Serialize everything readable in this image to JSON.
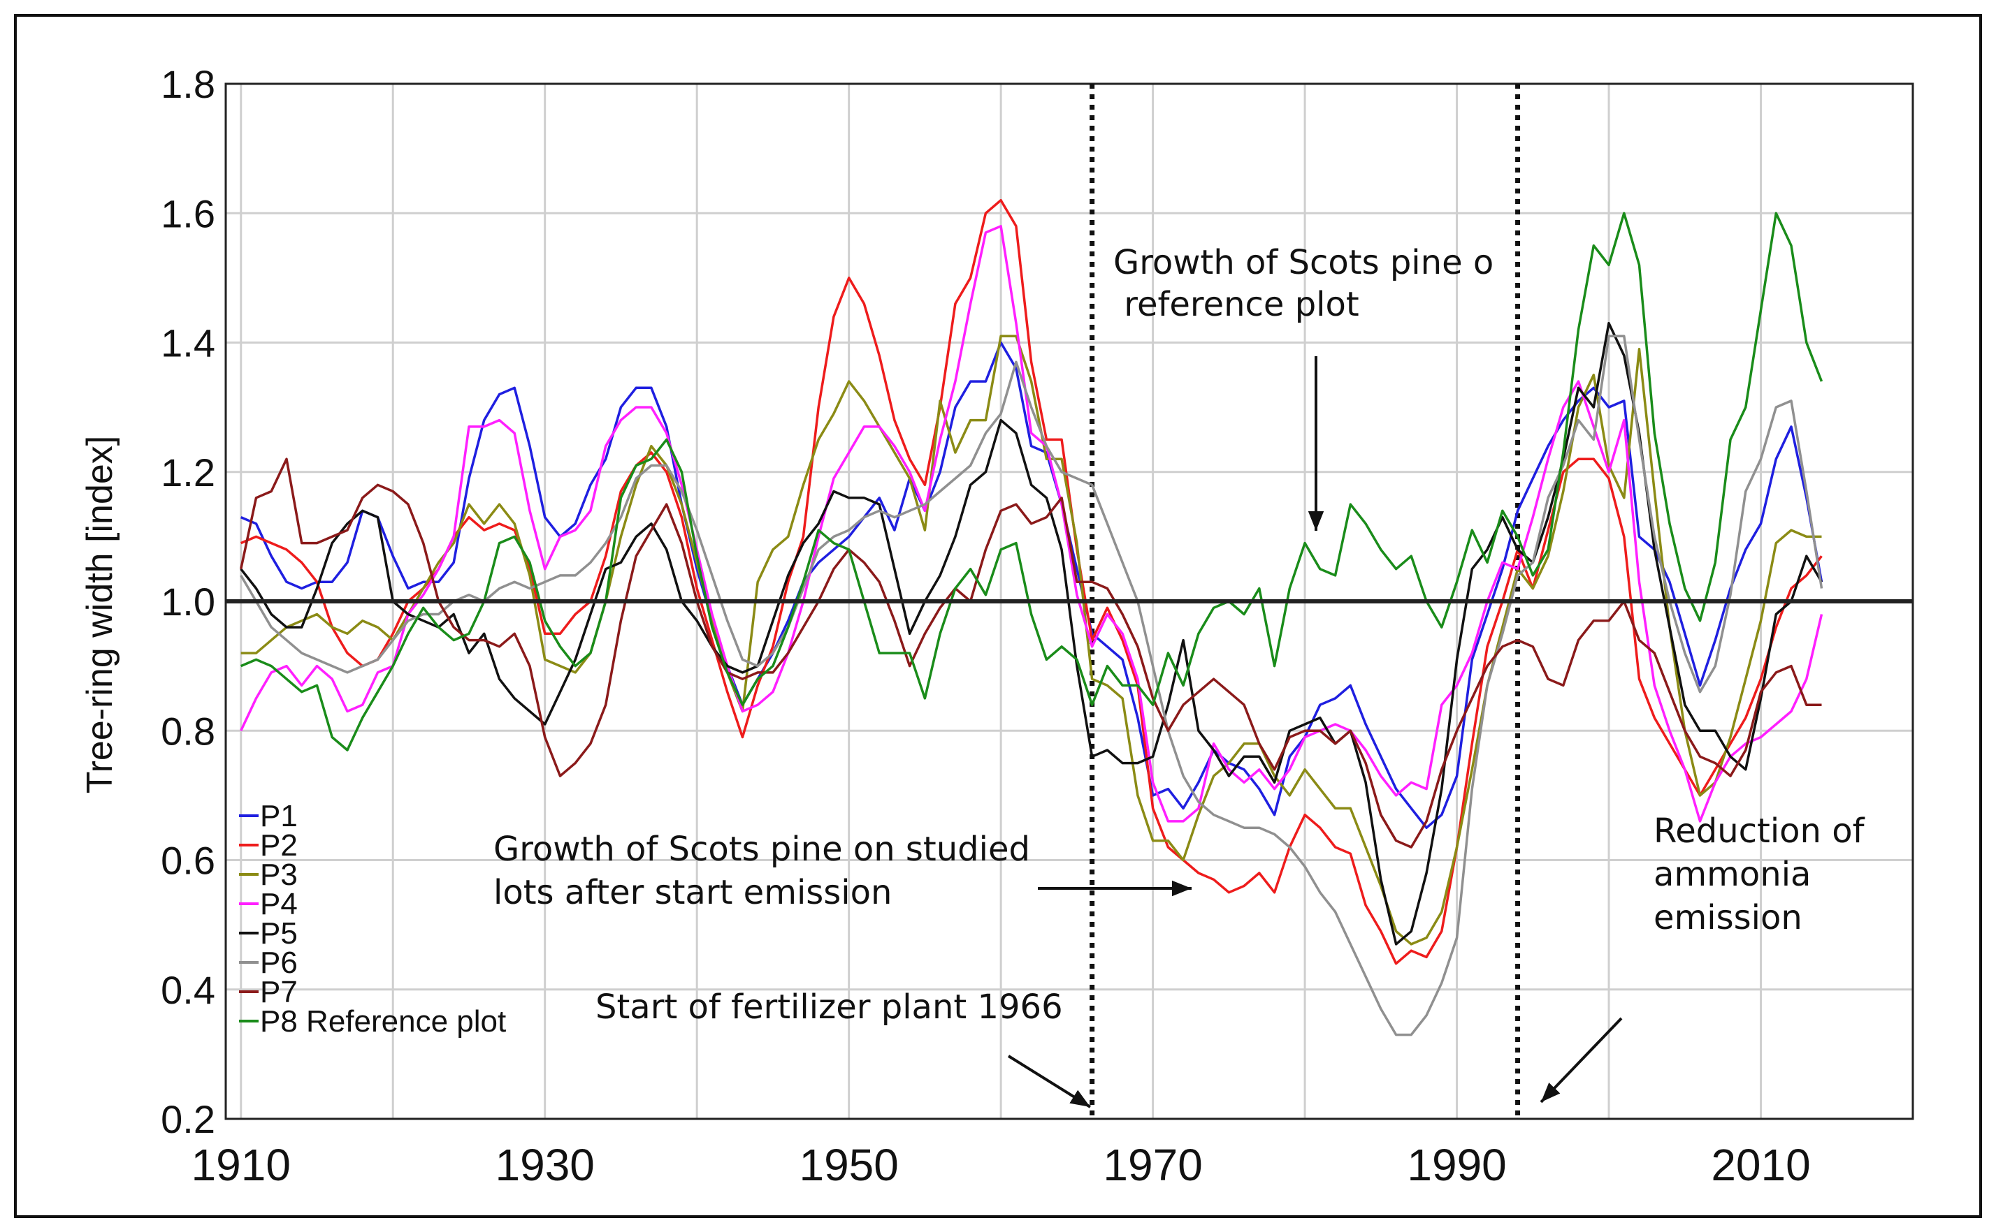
{
  "chart_data": {
    "type": "line",
    "title": "",
    "xlabel": "",
    "ylabel": "Tree-ring width [index]",
    "xlim": [
      1909,
      2020
    ],
    "ylim": [
      0.2,
      1.8
    ],
    "xticks": [
      1910,
      1930,
      1950,
      1970,
      1990,
      2010
    ],
    "yticks": [
      0.2,
      0.4,
      0.6,
      0.8,
      1.0,
      1.2,
      1.4,
      1.6,
      1.8
    ],
    "xtick_labels": [
      "1910",
      "1930",
      "1950",
      "1970",
      "1990",
      "2010"
    ],
    "ytick_labels": [
      "0.2",
      "0.4",
      "0.6",
      "0.8",
      "1.0",
      "1.2",
      "1.4",
      "1.6",
      "1.8"
    ],
    "grid": true,
    "legend_position": "bottom-left",
    "reference_line": 1.0,
    "vertical_markers": [
      1966,
      1994
    ],
    "annotations": [
      "Growth of Scots pine on reference plot",
      "Growth of Scots pine on studied plots after start emission",
      "Start of fertilizer plant 1966",
      "Reduction of ammonia emission"
    ],
    "x": [
      1910,
      1911,
      1912,
      1913,
      1914,
      1915,
      1916,
      1917,
      1918,
      1919,
      1920,
      1921,
      1922,
      1923,
      1924,
      1925,
      1926,
      1927,
      1928,
      1929,
      1930,
      1931,
      1932,
      1933,
      1934,
      1935,
      1936,
      1937,
      1938,
      1939,
      1940,
      1941,
      1942,
      1943,
      1944,
      1945,
      1946,
      1947,
      1948,
      1949,
      1950,
      1951,
      1952,
      1953,
      1954,
      1955,
      1956,
      1957,
      1958,
      1959,
      1960,
      1961,
      1962,
      1963,
      1964,
      1965,
      1966,
      1967,
      1968,
      1969,
      1970,
      1971,
      1972,
      1973,
      1974,
      1975,
      1976,
      1977,
      1978,
      1979,
      1980,
      1981,
      1982,
      1983,
      1984,
      1985,
      1986,
      1987,
      1988,
      1989,
      1990,
      1991,
      1992,
      1993,
      1994,
      1995,
      1996,
      1997,
      1998,
      1999,
      2000,
      2001,
      2002,
      2003,
      2004,
      2005,
      2006,
      2007,
      2008,
      2009,
      2010,
      2011,
      2012,
      2013,
      2014
    ],
    "series": [
      {
        "name": "P1",
        "color": "#1f1fe0",
        "values": [
          1.13,
          1.12,
          1.07,
          1.03,
          1.02,
          1.03,
          1.03,
          1.06,
          1.14,
          1.13,
          1.07,
          1.02,
          1.03,
          1.03,
          1.06,
          1.19,
          1.28,
          1.32,
          1.33,
          1.24,
          1.13,
          1.1,
          1.12,
          1.18,
          1.22,
          1.3,
          1.33,
          1.33,
          1.27,
          1.15,
          1.05,
          0.97,
          0.9,
          0.84,
          0.88,
          0.92,
          0.97,
          1.03,
          1.06,
          1.08,
          1.1,
          1.13,
          1.16,
          1.11,
          1.19,
          1.14,
          1.2,
          1.3,
          1.34,
          1.34,
          1.4,
          1.36,
          1.24,
          1.23,
          1.15,
          1.05,
          0.95,
          0.93,
          0.91,
          0.82,
          0.7,
          0.71,
          0.68,
          0.72,
          0.77,
          0.75,
          0.74,
          0.71,
          0.67,
          0.76,
          0.79,
          0.84,
          0.85,
          0.87,
          0.81,
          0.76,
          0.71,
          0.68,
          0.65,
          0.67,
          0.73,
          0.91,
          0.98,
          1.05,
          1.14,
          1.19,
          1.24,
          1.28,
          1.31,
          1.33,
          1.3,
          1.31,
          1.1,
          1.08,
          1.03,
          0.95,
          0.87,
          0.94,
          1.02,
          1.08,
          1.12,
          1.22,
          1.27,
          1.16,
          1.03
        ]
      },
      {
        "name": "P2",
        "color": "#ee1c1c",
        "values": [
          1.09,
          1.1,
          1.09,
          1.08,
          1.06,
          1.03,
          0.96,
          0.92,
          0.9,
          0.91,
          0.95,
          1.0,
          1.02,
          1.05,
          1.1,
          1.13,
          1.11,
          1.12,
          1.11,
          1.05,
          0.95,
          0.95,
          0.98,
          1.0,
          1.07,
          1.17,
          1.21,
          1.23,
          1.2,
          1.13,
          1.02,
          0.94,
          0.86,
          0.79,
          0.87,
          0.93,
          1.03,
          1.1,
          1.3,
          1.44,
          1.5,
          1.46,
          1.38,
          1.28,
          1.22,
          1.18,
          1.3,
          1.46,
          1.5,
          1.6,
          1.62,
          1.58,
          1.37,
          1.25,
          1.25,
          1.08,
          0.94,
          0.99,
          0.94,
          0.87,
          0.68,
          0.62,
          0.6,
          0.58,
          0.57,
          0.55,
          0.56,
          0.58,
          0.55,
          0.62,
          0.67,
          0.65,
          0.62,
          0.61,
          0.53,
          0.49,
          0.44,
          0.46,
          0.45,
          0.49,
          0.62,
          0.78,
          0.93,
          1.0,
          1.08,
          1.02,
          1.11,
          1.2,
          1.22,
          1.22,
          1.19,
          1.1,
          0.88,
          0.82,
          0.78,
          0.74,
          0.7,
          0.74,
          0.78,
          0.82,
          0.88,
          0.96,
          1.02,
          1.04,
          1.07
        ]
      },
      {
        "name": "P3",
        "color": "#8b8b15",
        "values": [
          0.92,
          0.92,
          0.94,
          0.96,
          0.97,
          0.98,
          0.96,
          0.95,
          0.97,
          0.96,
          0.94,
          0.98,
          1.02,
          1.06,
          1.09,
          1.15,
          1.12,
          1.15,
          1.12,
          1.04,
          0.91,
          0.9,
          0.89,
          0.92,
          1.0,
          1.1,
          1.18,
          1.24,
          1.21,
          1.15,
          1.06,
          0.97,
          0.89,
          0.83,
          1.03,
          1.08,
          1.1,
          1.18,
          1.25,
          1.29,
          1.34,
          1.31,
          1.27,
          1.23,
          1.19,
          1.11,
          1.31,
          1.23,
          1.28,
          1.28,
          1.41,
          1.41,
          1.34,
          1.22,
          1.22,
          1.09,
          0.88,
          0.87,
          0.85,
          0.7,
          0.63,
          0.63,
          0.6,
          0.67,
          0.73,
          0.75,
          0.78,
          0.78,
          0.73,
          0.7,
          0.74,
          0.71,
          0.68,
          0.68,
          0.62,
          0.56,
          0.49,
          0.47,
          0.48,
          0.52,
          0.62,
          0.74,
          0.87,
          0.96,
          1.05,
          1.02,
          1.07,
          1.17,
          1.3,
          1.35,
          1.21,
          1.16,
          1.39,
          1.17,
          0.96,
          0.8,
          0.7,
          0.72,
          0.79,
          0.88,
          0.97,
          1.09,
          1.11,
          1.1,
          1.1
        ]
      },
      {
        "name": "P4",
        "color": "#ff20ff",
        "values": [
          0.8,
          0.85,
          0.89,
          0.9,
          0.87,
          0.9,
          0.88,
          0.83,
          0.84,
          0.89,
          0.9,
          0.98,
          1.01,
          1.05,
          1.1,
          1.27,
          1.27,
          1.28,
          1.26,
          1.14,
          1.05,
          1.1,
          1.11,
          1.14,
          1.24,
          1.28,
          1.3,
          1.3,
          1.26,
          1.18,
          1.08,
          0.98,
          0.9,
          0.83,
          0.84,
          0.86,
          0.92,
          1.0,
          1.1,
          1.19,
          1.23,
          1.27,
          1.27,
          1.24,
          1.2,
          1.14,
          1.25,
          1.34,
          1.46,
          1.57,
          1.58,
          1.43,
          1.26,
          1.24,
          1.15,
          1.01,
          0.93,
          0.98,
          0.95,
          0.88,
          0.72,
          0.66,
          0.66,
          0.68,
          0.78,
          0.74,
          0.72,
          0.74,
          0.71,
          0.74,
          0.79,
          0.8,
          0.81,
          0.8,
          0.77,
          0.73,
          0.7,
          0.72,
          0.71,
          0.84,
          0.87,
          0.92,
          1.0,
          1.06,
          1.05,
          1.13,
          1.22,
          1.3,
          1.34,
          1.27,
          1.2,
          1.28,
          1.03,
          0.87,
          0.8,
          0.74,
          0.66,
          0.72,
          0.76,
          0.78,
          0.79,
          0.81,
          0.83,
          0.88,
          0.98
        ]
      },
      {
        "name": "P5",
        "color": "#111111",
        "values": [
          1.05,
          1.02,
          0.98,
          0.96,
          0.96,
          1.02,
          1.09,
          1.12,
          1.14,
          1.13,
          1.0,
          0.98,
          0.97,
          0.96,
          0.98,
          0.92,
          0.95,
          0.88,
          0.85,
          0.83,
          0.81,
          0.86,
          0.91,
          0.98,
          1.05,
          1.06,
          1.1,
          1.12,
          1.08,
          1.0,
          0.97,
          0.93,
          0.9,
          0.89,
          0.9,
          0.97,
          1.04,
          1.09,
          1.12,
          1.17,
          1.16,
          1.16,
          1.15,
          1.05,
          0.95,
          1.0,
          1.04,
          1.1,
          1.18,
          1.2,
          1.28,
          1.26,
          1.18,
          1.16,
          1.08,
          0.9,
          0.76,
          0.77,
          0.75,
          0.75,
          0.76,
          0.84,
          0.94,
          0.8,
          0.77,
          0.73,
          0.76,
          0.76,
          0.72,
          0.8,
          0.81,
          0.82,
          0.78,
          0.8,
          0.72,
          0.57,
          0.47,
          0.49,
          0.58,
          0.71,
          0.91,
          1.05,
          1.08,
          1.13,
          1.08,
          1.06,
          1.13,
          1.22,
          1.33,
          1.3,
          1.43,
          1.38,
          1.26,
          1.08,
          0.96,
          0.84,
          0.8,
          0.8,
          0.76,
          0.74,
          0.85,
          0.98,
          1.0,
          1.07,
          1.03
        ]
      },
      {
        "name": "P6",
        "color": "#909090",
        "values": [
          1.04,
          1.0,
          0.96,
          0.94,
          0.92,
          0.91,
          0.9,
          0.89,
          0.9,
          0.91,
          0.94,
          0.97,
          0.98,
          0.98,
          1.0,
          1.01,
          1.0,
          1.02,
          1.03,
          1.02,
          1.03,
          1.04,
          1.04,
          1.06,
          1.09,
          1.13,
          1.19,
          1.21,
          1.21,
          1.17,
          1.11,
          1.04,
          0.97,
          0.91,
          0.9,
          0.92,
          0.96,
          1.02,
          1.08,
          1.1,
          1.11,
          1.13,
          1.14,
          1.13,
          1.14,
          1.15,
          1.17,
          1.19,
          1.21,
          1.26,
          1.29,
          1.37,
          1.3,
          1.24,
          1.2,
          1.19,
          1.18,
          1.12,
          1.06,
          1.0,
          0.9,
          0.8,
          0.73,
          0.69,
          0.67,
          0.66,
          0.65,
          0.65,
          0.64,
          0.62,
          0.59,
          0.55,
          0.52,
          0.47,
          0.42,
          0.37,
          0.33,
          0.33,
          0.36,
          0.41,
          0.48,
          0.71,
          0.87,
          0.95,
          1.04,
          1.06,
          1.16,
          1.21,
          1.28,
          1.25,
          1.41,
          1.41,
          1.25,
          1.1,
          1.0,
          0.92,
          0.86,
          0.9,
          1.01,
          1.17,
          1.22,
          1.3,
          1.31,
          1.17,
          1.02
        ]
      },
      {
        "name": "P7",
        "color": "#8b1a1a",
        "values": [
          1.05,
          1.16,
          1.17,
          1.22,
          1.09,
          1.09,
          1.1,
          1.11,
          1.16,
          1.18,
          1.17,
          1.15,
          1.09,
          1.0,
          0.96,
          0.94,
          0.94,
          0.93,
          0.95,
          0.9,
          0.79,
          0.73,
          0.75,
          0.78,
          0.84,
          0.97,
          1.07,
          1.11,
          1.15,
          1.09,
          1.0,
          0.93,
          0.89,
          0.88,
          0.89,
          0.89,
          0.92,
          0.96,
          1.0,
          1.05,
          1.08,
          1.06,
          1.03,
          0.97,
          0.9,
          0.95,
          0.99,
          1.02,
          1.0,
          1.08,
          1.14,
          1.15,
          1.12,
          1.13,
          1.16,
          1.03,
          1.03,
          1.02,
          0.98,
          0.93,
          0.85,
          0.8,
          0.84,
          0.86,
          0.88,
          0.86,
          0.84,
          0.78,
          0.74,
          0.79,
          0.8,
          0.8,
          0.78,
          0.8,
          0.75,
          0.67,
          0.63,
          0.62,
          0.66,
          0.74,
          0.8,
          0.85,
          0.9,
          0.93,
          0.94,
          0.93,
          0.88,
          0.87,
          0.94,
          0.97,
          0.97,
          1.0,
          0.94,
          0.92,
          0.86,
          0.8,
          0.76,
          0.75,
          0.73,
          0.77,
          0.86,
          0.89,
          0.9,
          0.84,
          0.84
        ]
      },
      {
        "name": "P8 Reference plot",
        "color": "#1a8c1a",
        "values": [
          0.9,
          0.91,
          0.9,
          0.88,
          0.86,
          0.87,
          0.79,
          0.77,
          0.82,
          0.86,
          0.9,
          0.95,
          0.99,
          0.96,
          0.94,
          0.95,
          1.0,
          1.09,
          1.1,
          1.06,
          0.97,
          0.93,
          0.9,
          0.92,
          1.0,
          1.16,
          1.21,
          1.22,
          1.25,
          1.2,
          1.07,
          0.96,
          0.89,
          0.84,
          0.88,
          0.9,
          0.96,
          1.03,
          1.11,
          1.09,
          1.08,
          1.0,
          0.92,
          0.92,
          0.92,
          0.85,
          0.95,
          1.02,
          1.05,
          1.01,
          1.08,
          1.09,
          0.98,
          0.91,
          0.93,
          0.91,
          0.84,
          0.9,
          0.87,
          0.87,
          0.84,
          0.92,
          0.87,
          0.95,
          0.99,
          1.0,
          0.98,
          1.02,
          0.9,
          1.02,
          1.09,
          1.05,
          1.04,
          1.15,
          1.12,
          1.08,
          1.05,
          1.07,
          1.0,
          0.96,
          1.03,
          1.11,
          1.06,
          1.14,
          1.1,
          1.04,
          1.08,
          1.23,
          1.42,
          1.55,
          1.52,
          1.6,
          1.52,
          1.26,
          1.12,
          1.02,
          0.97,
          1.06,
          1.25,
          1.3,
          1.45,
          1.6,
          1.55,
          1.4,
          1.34
        ]
      }
    ]
  }
}
